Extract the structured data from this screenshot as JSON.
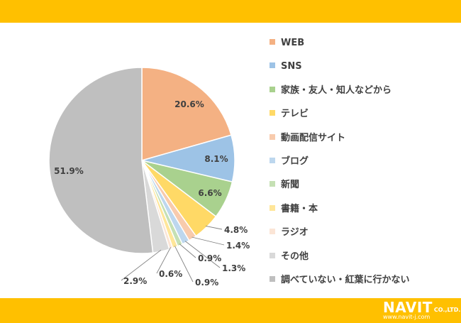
{
  "header": {},
  "chart_data": {
    "type": "pie",
    "title": "",
    "categories": [
      "WEB",
      "SNS",
      "家族・友人・知人などから",
      "テレビ",
      "動画配信サイト",
      "ブログ",
      "新聞",
      "書籍・本",
      "ラジオ",
      "その他",
      "調べていない・紅葉に行かない"
    ],
    "values": [
      20.6,
      8.1,
      6.6,
      4.8,
      1.4,
      1.3,
      0.9,
      0.9,
      0.6,
      2.9,
      51.9
    ],
    "data_labels": [
      "20.6%",
      "8.1%",
      "6.6%",
      "4.8%",
      "1.4%",
      "1.3%",
      "0.9%",
      "0.9%",
      "0.6%",
      "2.9%",
      "51.9%"
    ],
    "colors": [
      "#F4B183",
      "#9DC3E6",
      "#A9D18E",
      "#FFD966",
      "#F8CBAD",
      "#BDD7EE",
      "#C5E0B4",
      "#FFE699",
      "#FBE5D6",
      "#D9D9D9",
      "#BFBFBF"
    ],
    "start": "12 o'clock, clockwise",
    "legend_position": "right"
  },
  "footer": {
    "logo_text": "NAVIT",
    "logo_suffix": "CO.,LTD.",
    "logo_url": "www.navit-j.com"
  }
}
